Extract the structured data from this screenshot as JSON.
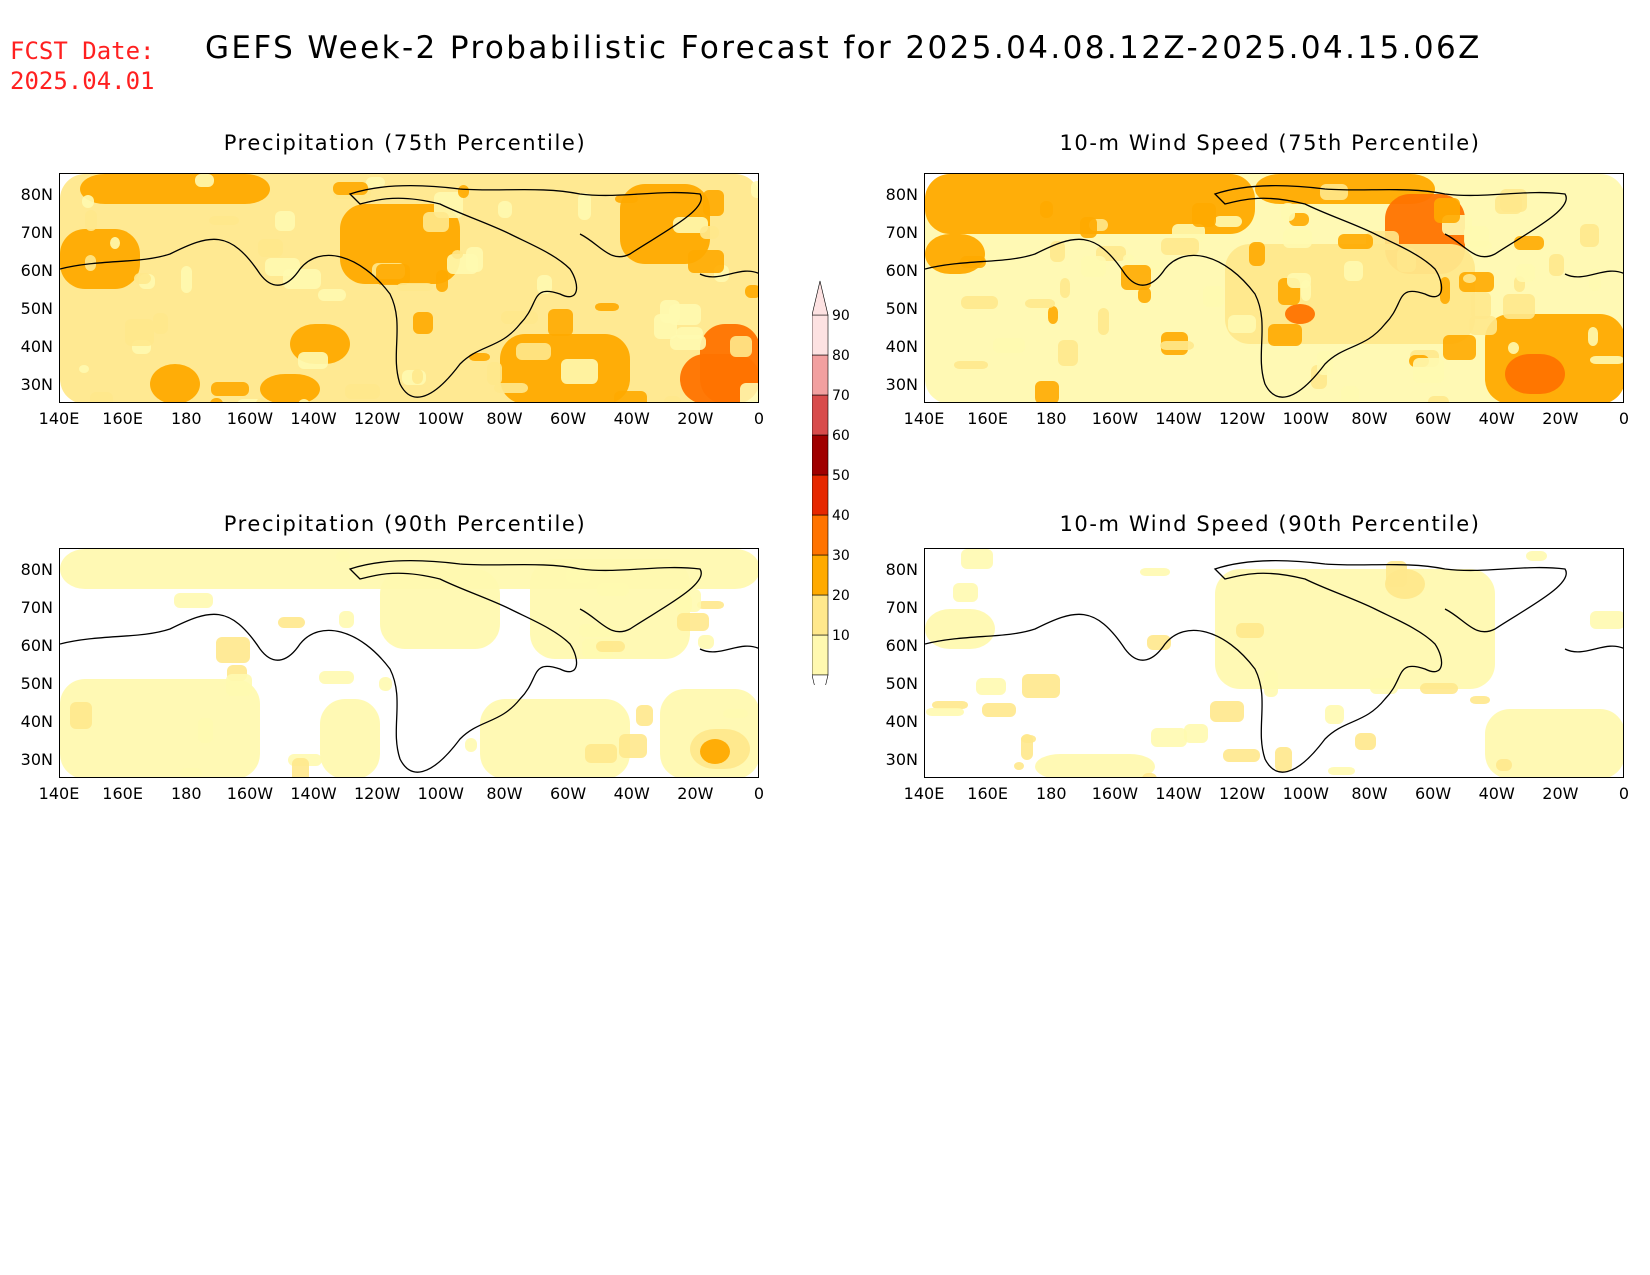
{
  "header": {
    "fcst_label": "FCST Date:",
    "fcst_date": "2025.04.01",
    "title": "GEFS Week-2 Probabilistic Forecast for 2025.04.08.12Z-2025.04.15.06Z"
  },
  "axes": {
    "lat_ticks": [
      "80N",
      "70N",
      "60N",
      "50N",
      "40N",
      "30N"
    ],
    "lon_ticks": [
      "140E",
      "160E",
      "180",
      "160W",
      "140W",
      "120W",
      "100W",
      "80W",
      "60W",
      "40W",
      "20W",
      "0"
    ]
  },
  "panels": [
    {
      "title": "Precipitation (75th Percentile)",
      "intensity": "high",
      "emphasis": "ocean-east"
    },
    {
      "title": "10-m Wind Speed (75th Percentile)",
      "intensity": "high",
      "emphasis": "arctic-north"
    },
    {
      "title": "Precipitation (90th Percentile)",
      "intensity": "low",
      "emphasis": "ocean-east"
    },
    {
      "title": "10-m Wind Speed (90th Percentile)",
      "intensity": "low",
      "emphasis": "arctic-north"
    }
  ],
  "colorbar": {
    "levels": [
      "10",
      "20",
      "30",
      "40",
      "50",
      "60",
      "70",
      "80",
      "90"
    ],
    "colors": [
      "#fff9b0",
      "#ffe88c",
      "#ffaa00",
      "#ff7300",
      "#e62800",
      "#a00000",
      "#d84c4c",
      "#f2a0a0",
      "#fde2e2"
    ]
  }
}
